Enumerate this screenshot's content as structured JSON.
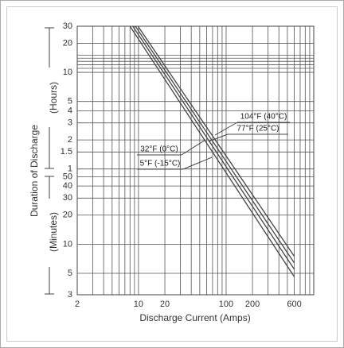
{
  "chart_data": {
    "type": "line",
    "x_label": "Discharge Current (Amps)",
    "y_label": "Duration of Discharge",
    "y_label_upper": "(Hours)",
    "y_label_lower": "(Minutes)",
    "x_log": true,
    "y_log": true,
    "grid": true,
    "xlim": [
      2,
      1000
    ],
    "xticks": [
      2,
      10,
      20,
      100,
      200,
      600
    ],
    "xgrid": [
      3,
      4,
      5,
      6,
      7,
      8,
      9,
      30,
      40,
      50,
      60,
      70,
      80,
      90,
      300,
      400,
      500,
      700,
      800,
      900
    ],
    "ylim": [
      3,
      1800
    ],
    "yticks": [
      {
        "value": 1800,
        "label": "30"
      },
      {
        "value": 1200,
        "label": "20"
      },
      {
        "value": 600,
        "label": "10"
      },
      {
        "value": 300,
        "label": "5"
      },
      {
        "value": 240,
        "label": "4"
      },
      {
        "value": 180,
        "label": "3"
      },
      {
        "value": 120,
        "label": "2"
      },
      {
        "value": 90,
        "label": "1.5"
      },
      {
        "value": 60,
        "label": "1"
      },
      50,
      40,
      30,
      20,
      10,
      5,
      3
    ],
    "ygrid": [
      660,
      720,
      780,
      840,
      900
    ],
    "x": [
      8,
      600
    ],
    "series": [
      {
        "name": "104°F (40°C)",
        "color": "#444444",
        "values": [
          2380,
          7.5
        ]
      },
      {
        "name": "77°F (25°C)",
        "color": "#444444",
        "values": [
          2180,
          6.4
        ]
      },
      {
        "name": "32°F (0°C)",
        "color": "#444444",
        "values": [
          1990,
          5.5
        ]
      },
      {
        "name": "5°F (-15°C)",
        "color": "#444444",
        "values": [
          1800,
          4.6
        ]
      }
    ]
  }
}
